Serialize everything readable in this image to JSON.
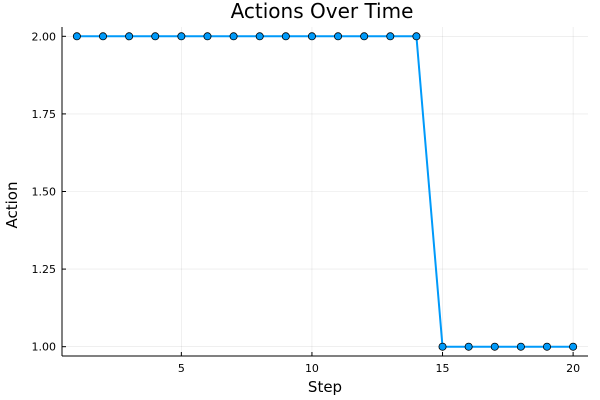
{
  "chart_data": {
    "type": "line",
    "title": "Actions Over Time",
    "xlabel": "Step",
    "ylabel": "Action",
    "xlim": [
      0.43,
      20.57
    ],
    "ylim": [
      0.97,
      2.03
    ],
    "xticks": [
      5,
      10,
      15,
      20
    ],
    "yticks": [
      1.0,
      1.25,
      1.5,
      1.75,
      2.0
    ],
    "ytick_labels": [
      "1.00",
      "1.25",
      "1.50",
      "1.75",
      "2.00"
    ],
    "grid": true,
    "legend": false,
    "series": [
      {
        "color": "#009AFA",
        "marker": "circle",
        "x": [
          1,
          2,
          3,
          4,
          5,
          6,
          7,
          8,
          9,
          10,
          11,
          12,
          13,
          14,
          15,
          16,
          17,
          18,
          19,
          20
        ],
        "y": [
          2,
          2,
          2,
          2,
          2,
          2,
          2,
          2,
          2,
          2,
          2,
          2,
          2,
          2,
          1,
          1,
          1,
          1,
          1,
          1
        ]
      }
    ]
  }
}
